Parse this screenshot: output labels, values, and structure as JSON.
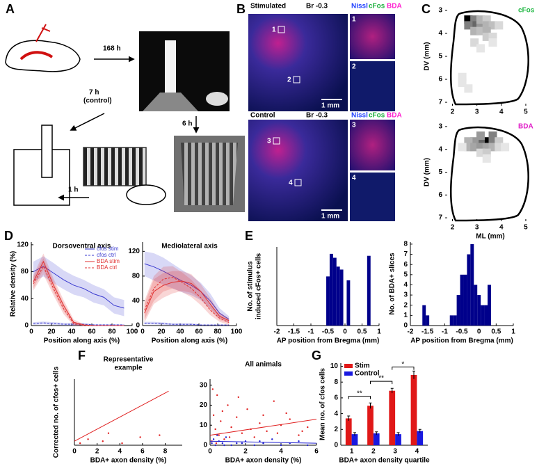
{
  "panel_labels": [
    "A",
    "B",
    "C",
    "D",
    "E",
    "F",
    "G"
  ],
  "panel_a": {
    "arrow_1": "168 h",
    "arrow_2": "6 h",
    "arrow_3": [
      "7 h",
      "(control)"
    ],
    "arrow_4": "1 h"
  },
  "panel_b": {
    "stim_label": "Stimulated",
    "ctrl_label": "Control",
    "section": "Br -0.3",
    "stains": [
      "Nissl",
      "cFos",
      "BDA"
    ],
    "insets": [
      "1",
      "2",
      "3",
      "4"
    ],
    "scale_bar": "1 mm"
  },
  "chart_data": [
    {
      "type": "heatmap",
      "ylabel": "DV (mm)",
      "xlim": [
        1.7,
        5.4
      ],
      "ylim": [
        7.15,
        2.85
      ],
      "xticks": [
        2,
        3,
        4,
        5
      ],
      "yticks": [
        3,
        4,
        5,
        6,
        7
      ],
      "legend": "upper right",
      "series": [
        {
          "name": "cFos",
          "color": "#22b845",
          "x": [
            2.65,
            2.9,
            2.9,
            3.15,
            2.65,
            3.15,
            3.4,
            3.4,
            3.65,
            2.9,
            3.15,
            3.4,
            3.4,
            3.65,
            2.9,
            3.15,
            2.4,
            2.4,
            2.65,
            3.65,
            3.9
          ],
          "y": [
            3.4,
            3.4,
            3.65,
            3.65,
            3.65,
            3.4,
            3.4,
            3.65,
            3.65,
            3.9,
            3.9,
            3.9,
            4.15,
            4.15,
            4.4,
            4.65,
            5.9,
            6.15,
            6.4,
            4.4,
            3.65
          ],
          "values": [
            1,
            0.5,
            0.6,
            0.4,
            0.5,
            0.3,
            0.2,
            0.3,
            0.25,
            0.3,
            0.25,
            0.3,
            0.2,
            0.15,
            0.15,
            0.1,
            0.1,
            0.1,
            0.1,
            0.1,
            0.15
          ]
        }
      ]
    },
    {
      "type": "heatmap",
      "ylabel": "DV (mm)",
      "xlabel": "ML (mm)",
      "xlim": [
        1.7,
        5.4
      ],
      "ylim": [
        7.15,
        2.85
      ],
      "xticks": [
        2,
        3,
        4,
        5
      ],
      "yticks": [
        3,
        4,
        5,
        6,
        7
      ],
      "legend": "upper right",
      "series": [
        {
          "name": "BDA",
          "color": "#e020c8",
          "x": [
            3.4,
            3.15,
            3.15,
            3.65,
            3.65,
            2.9,
            2.65,
            2.65,
            2.9,
            3.15,
            3.4,
            3.65,
            3.9,
            3.9,
            4.15,
            3.15,
            3.4,
            2.4,
            3.4
          ],
          "y": [
            3.65,
            3.65,
            3.4,
            3.4,
            3.65,
            3.65,
            3.65,
            3.9,
            3.9,
            3.9,
            3.9,
            3.9,
            3.65,
            3.9,
            3.9,
            4.15,
            4.15,
            3.9,
            4.4
          ],
          "values": [
            1,
            0.6,
            0.4,
            0.5,
            0.5,
            0.4,
            0.3,
            0.3,
            0.35,
            0.4,
            0.35,
            0.3,
            0.2,
            0.15,
            0.1,
            0.15,
            0.2,
            0.1,
            0.1
          ]
        }
      ]
    },
    {
      "type": "line",
      "title": "Dorsoventral axis",
      "ylabel": "Relative density (%)",
      "xlabel": "Position along axis (%)",
      "xlim": [
        0,
        100
      ],
      "ylim": [
        0,
        124
      ],
      "xticks": [
        0,
        20,
        40,
        60,
        80,
        100
      ],
      "yticks": [
        0,
        40,
        80,
        120
      ],
      "legend": "upper right",
      "x": [
        2,
        12,
        22,
        32,
        42,
        52,
        62,
        72,
        82,
        92
      ],
      "series": [
        {
          "name": "cfos stim",
          "color": "#3a3ad0",
          "dashed": false,
          "values": [
            80,
            88,
            78,
            68,
            60,
            55,
            47,
            42,
            30,
            26
          ],
          "errors": [
            15,
            15,
            15,
            14,
            14,
            13,
            13,
            12,
            12,
            12
          ]
        },
        {
          "name": "cfos ctrl",
          "color": "#3a3ad0",
          "dashed": true,
          "values": [
            3,
            4,
            3,
            2,
            2,
            2,
            1,
            1,
            1,
            1
          ],
          "errors": [
            2,
            2,
            2,
            2,
            2,
            2,
            1,
            1,
            1,
            1
          ]
        },
        {
          "name": "BDA stim",
          "color": "#e03030",
          "dashed": false,
          "values": [
            65,
            95,
            60,
            30,
            5,
            1,
            0,
            0,
            0,
            0
          ],
          "errors": [
            10,
            12,
            10,
            8,
            4,
            1,
            0,
            0,
            0,
            0
          ]
        },
        {
          "name": "BDA ctrl",
          "color": "#e03030",
          "dashed": true,
          "values": [
            62,
            88,
            55,
            25,
            3,
            0,
            0,
            0,
            0,
            0
          ],
          "errors": [
            10,
            12,
            10,
            8,
            3,
            0,
            0,
            0,
            0,
            0
          ]
        }
      ]
    },
    {
      "type": "line",
      "title": "Mediolateral axis",
      "xlabel": "Position along axis (%)",
      "xlim": [
        0,
        100
      ],
      "ylim": [
        0,
        135
      ],
      "xticks": [
        0,
        20,
        40,
        60,
        80,
        100
      ],
      "yticks": [
        0,
        40,
        80,
        120
      ],
      "x": [
        2,
        12,
        22,
        32,
        42,
        52,
        62,
        72,
        82,
        92
      ],
      "series": [
        {
          "color": "#3a3ad0",
          "dashed": false,
          "values": [
            100,
            95,
            88,
            80,
            72,
            65,
            55,
            40,
            20,
            10
          ],
          "errors": [
            20,
            22,
            22,
            20,
            18,
            16,
            14,
            12,
            8,
            5
          ]
        },
        {
          "color": "#3a3ad0",
          "dashed": true,
          "values": [
            4,
            4,
            3,
            2,
            2,
            2,
            1,
            1,
            1,
            1
          ],
          "errors": [
            2,
            2,
            2,
            2,
            2,
            2,
            1,
            1,
            1,
            1
          ]
        },
        {
          "color": "#e03030",
          "dashed": false,
          "values": [
            20,
            55,
            65,
            70,
            72,
            68,
            55,
            35,
            15,
            8
          ],
          "errors": [
            15,
            20,
            20,
            18,
            16,
            15,
            12,
            10,
            6,
            4
          ]
        },
        {
          "color": "#e03030",
          "dashed": true,
          "values": [
            25,
            60,
            75,
            78,
            70,
            60,
            45,
            25,
            12,
            5
          ],
          "errors": [
            15,
            20,
            20,
            18,
            16,
            14,
            12,
            8,
            6,
            4
          ]
        }
      ]
    },
    {
      "type": "histogram",
      "ylabel": [
        "No. of stimulus",
        "induced cFos+ cells"
      ],
      "xlabel": "AP position from Bregma (mm)",
      "xlim": [
        -2,
        1
      ],
      "ylim": [
        0,
        400
      ],
      "xticks": [
        -2,
        -1.5,
        -1,
        -0.5,
        0,
        0.5,
        1
      ],
      "color": "#00008b",
      "bins": [
        -0.55,
        -0.45,
        -0.35,
        -0.25,
        -0.15,
        -0.05,
        0.05,
        0.15,
        0.25,
        0.35,
        0.45,
        0.55,
        0.65,
        0.75
      ],
      "values": [
        250,
        365,
        345,
        300,
        285,
        0,
        230,
        0,
        0,
        0,
        0,
        0,
        355
      ]
    },
    {
      "type": "histogram",
      "ylabel": "No. of BDA+ slices",
      "xlabel": "AP position from Bregma (mm)",
      "xlim": [
        -2,
        1
      ],
      "ylim": [
        0,
        8.2
      ],
      "xticks": [
        -2,
        -1.5,
        -1,
        -0.5,
        0,
        0.5,
        1
      ],
      "yticks": [
        0,
        1,
        2,
        3,
        4,
        5,
        6,
        7,
        8
      ],
      "color": "#00008b",
      "bins": [
        -1.65,
        -1.55,
        -1.45,
        -1.35,
        -1.25,
        -1.15,
        -1.05,
        -0.95,
        -0.85,
        -0.75,
        -0.65,
        -0.55,
        -0.45,
        -0.35,
        -0.25,
        -0.15,
        -0.05,
        0.05,
        0.15,
        0.25,
        0.35,
        0.45,
        0.55
      ],
      "values": [
        2,
        1,
        0,
        0,
        0,
        0,
        0,
        0,
        1,
        1,
        3,
        5,
        5,
        7,
        8,
        4,
        3,
        2,
        2,
        4,
        0,
        0
      ]
    },
    {
      "type": "scatter",
      "title": [
        "Representative",
        "example"
      ],
      "ylabel": "Corrected no. of cfos+ cells",
      "xlabel": "BDA+ axon density (%)",
      "xlim": [
        0,
        9.5
      ],
      "ylim": [
        0,
        33
      ],
      "xticks": [
        0,
        2,
        4,
        6,
        8
      ],
      "series": [
        {
          "color": "#e02020",
          "mode": "markers",
          "x": [
            1.2,
            2.5,
            3.0,
            4.2,
            5.8,
            7.5,
            0.5
          ],
          "values": [
            3,
            2,
            6,
            1,
            4,
            5,
            1
          ]
        },
        {
          "color": "#e02020",
          "mode": "line",
          "x": [
            0,
            8.3
          ],
          "values": [
            2,
            27
          ]
        }
      ]
    },
    {
      "type": "scatter",
      "title": "All animals",
      "xlabel": "BDA+ axon density (%)",
      "xlim": [
        0,
        6
      ],
      "ylim": [
        0,
        33
      ],
      "xticks": [
        0,
        2,
        4,
        6
      ],
      "yticks": [
        0,
        10,
        20,
        30
      ],
      "series": [
        {
          "color": "#e02020",
          "mode": "markers",
          "x": [
            0.1,
            0.2,
            0.3,
            0.4,
            0.5,
            0.6,
            0.8,
            1.0,
            1.2,
            1.5,
            1.8,
            2.1,
            2.5,
            2.8,
            3.2,
            3.6,
            4.0,
            4.5,
            5.0,
            5.5,
            0.15,
            0.35,
            0.7,
            1.1,
            1.6,
            2.3,
            3.0,
            3.8,
            4.3,
            5.2
          ],
          "values": [
            2,
            15,
            8,
            25,
            5,
            12,
            3,
            20,
            9,
            14,
            6,
            18,
            4,
            11,
            7,
            22,
            10,
            13,
            5,
            9,
            28,
            1,
            17,
            4,
            24,
            8,
            15,
            6,
            16,
            7
          ]
        },
        {
          "color": "#2020d0",
          "mode": "markers",
          "x": [
            0.1,
            0.2,
            0.3,
            0.5,
            0.7,
            0.9,
            1.2,
            1.5,
            2.0,
            2.5,
            3.0,
            3.5,
            4.0,
            4.5,
            5.0,
            5.5,
            0.4,
            0.8,
            1.8,
            2.8
          ],
          "values": [
            1,
            3,
            0,
            2,
            1,
            4,
            0,
            1,
            2,
            0,
            1,
            3,
            0,
            1,
            2,
            0,
            5,
            0,
            1,
            2
          ]
        },
        {
          "color": "#e02020",
          "mode": "line",
          "x": [
            0,
            6
          ],
          "values": [
            5,
            13
          ]
        },
        {
          "color": "#2020d0",
          "mode": "line",
          "x": [
            0,
            6
          ],
          "values": [
            2,
            1
          ]
        }
      ]
    },
    {
      "type": "bar",
      "ylabel": "Mean no. of cfos cells",
      "xlabel": "BDA+ axon density quartile",
      "categories": [
        "1",
        "2",
        "3",
        "4"
      ],
      "ylim": [
        0,
        10.4
      ],
      "yticks": [
        0,
        2,
        4,
        6,
        8,
        10
      ],
      "legend": "upper left",
      "series": [
        {
          "name": "Stim",
          "color": "#e01818",
          "values": [
            3.4,
            5,
            6.9,
            8.9
          ],
          "errors": [
            0.3,
            0.35,
            0.3,
            0.5
          ]
        },
        {
          "name": "Control",
          "color": "#1818e0",
          "values": [
            1.4,
            1.5,
            1.4,
            1.8
          ],
          "errors": [
            0.2,
            0.2,
            0.2,
            0.2
          ]
        }
      ],
      "annotations": [
        {
          "label": "**",
          "between": [
            "1",
            "2"
          ],
          "y": 6.2
        },
        {
          "label": "**",
          "between": [
            "2",
            "3"
          ],
          "y": 8.1
        },
        {
          "label": "*",
          "between": [
            "3",
            "4"
          ],
          "y": 9.9
        }
      ]
    }
  ]
}
